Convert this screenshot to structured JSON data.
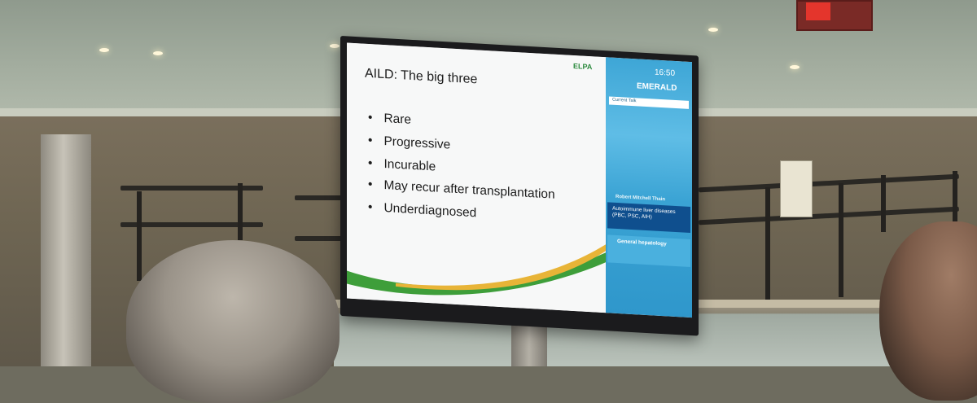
{
  "slide": {
    "title": "AILD: The big three",
    "bullets": [
      "Rare",
      "Progressive",
      "Incurable",
      "May recur after transplantation",
      "Underdiagnosed"
    ],
    "logo_text": "ELPA"
  },
  "side_panel": {
    "clock": "16:50",
    "room": "EMERALD",
    "current_talk_label": "Current Talk",
    "speaker": "Robert Mitchell Thain",
    "talk_title": "Autoimmune liver diseases (PBC, PSC, AIH)",
    "session": "General hepatology"
  },
  "colors": {
    "panel_blue": "#3ea6d6",
    "title_box_navy": "#0f4f8e",
    "swoosh_green": "#3e9e3a",
    "swoosh_yellow": "#e8b437"
  }
}
